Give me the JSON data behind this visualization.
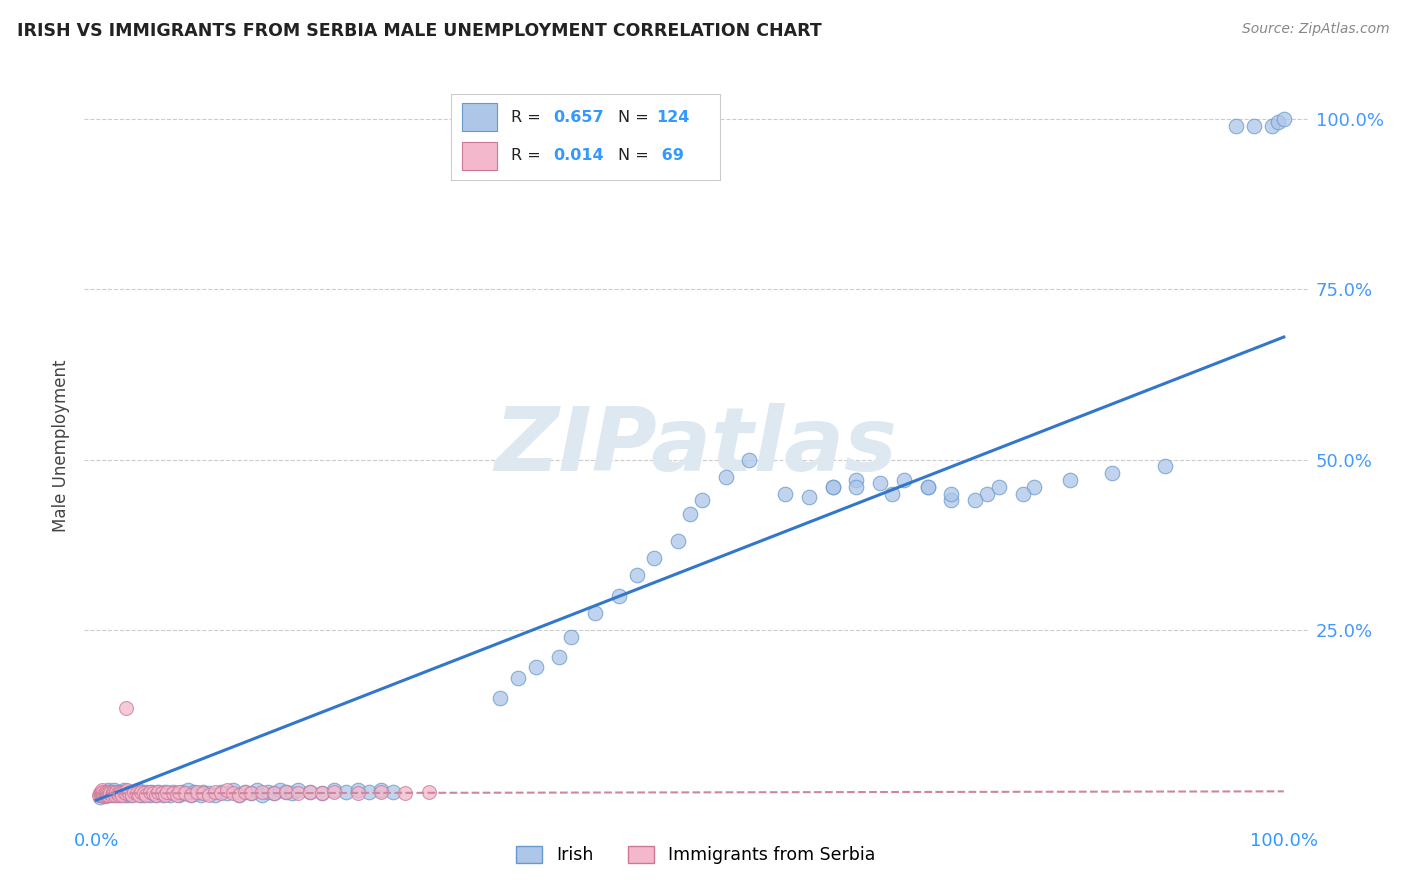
{
  "title": "IRISH VS IMMIGRANTS FROM SERBIA MALE UNEMPLOYMENT CORRELATION CHART",
  "source": "Source: ZipAtlas.com",
  "ylabel": "Male Unemployment",
  "legend_irish_R": "0.657",
  "legend_irish_N": "124",
  "legend_serbia_R": "0.014",
  "legend_serbia_N": "69",
  "irish_face_color": "#aec6e8",
  "irish_edge_color": "#6699cc",
  "serbia_face_color": "#f4b8cc",
  "serbia_edge_color": "#cc7799",
  "irish_line_color": "#3377cc",
  "serbia_line_color": "#cc8899",
  "grid_color": "#cccccc",
  "watermark_color": "#dde8f0",
  "right_tick_color": "#4499ff",
  "irish_x": [
    0.003,
    0.004,
    0.005,
    0.006,
    0.007,
    0.008,
    0.008,
    0.009,
    0.01,
    0.01,
    0.011,
    0.012,
    0.013,
    0.014,
    0.015,
    0.015,
    0.016,
    0.017,
    0.018,
    0.019,
    0.02,
    0.021,
    0.022,
    0.023,
    0.024,
    0.025,
    0.026,
    0.027,
    0.028,
    0.029,
    0.03,
    0.032,
    0.034,
    0.035,
    0.037,
    0.038,
    0.04,
    0.041,
    0.043,
    0.045,
    0.046,
    0.048,
    0.05,
    0.052,
    0.054,
    0.056,
    0.058,
    0.06,
    0.062,
    0.065,
    0.067,
    0.07,
    0.072,
    0.075,
    0.077,
    0.08,
    0.082,
    0.085,
    0.088,
    0.09,
    0.095,
    0.1,
    0.105,
    0.11,
    0.115,
    0.12,
    0.125,
    0.13,
    0.135,
    0.14,
    0.145,
    0.15,
    0.155,
    0.16,
    0.165,
    0.17,
    0.18,
    0.19,
    0.2,
    0.21,
    0.22,
    0.23,
    0.24,
    0.25,
    0.34,
    0.355,
    0.37,
    0.39,
    0.4,
    0.42,
    0.44,
    0.455,
    0.47,
    0.49,
    0.5,
    0.51,
    0.53,
    0.55,
    0.6,
    0.62,
    0.64,
    0.67,
    0.7,
    0.72,
    0.75,
    0.79,
    0.82,
    0.855,
    0.9,
    0.96,
    0.975,
    0.99,
    0.995,
    1.0,
    0.58,
    0.62,
    0.64,
    0.66,
    0.68,
    0.7,
    0.72,
    0.74,
    0.76,
    0.78
  ],
  "irish_y": [
    0.005,
    0.008,
    0.01,
    0.008,
    0.006,
    0.01,
    0.012,
    0.008,
    0.01,
    0.015,
    0.008,
    0.012,
    0.01,
    0.008,
    0.012,
    0.015,
    0.01,
    0.008,
    0.012,
    0.01,
    0.008,
    0.012,
    0.01,
    0.015,
    0.008,
    0.01,
    0.012,
    0.008,
    0.01,
    0.012,
    0.008,
    0.01,
    0.012,
    0.015,
    0.008,
    0.01,
    0.008,
    0.012,
    0.01,
    0.008,
    0.012,
    0.01,
    0.008,
    0.012,
    0.01,
    0.008,
    0.012,
    0.01,
    0.008,
    0.012,
    0.01,
    0.008,
    0.012,
    0.01,
    0.015,
    0.008,
    0.012,
    0.01,
    0.008,
    0.012,
    0.01,
    0.008,
    0.012,
    0.01,
    0.015,
    0.008,
    0.012,
    0.01,
    0.015,
    0.008,
    0.012,
    0.01,
    0.015,
    0.012,
    0.01,
    0.015,
    0.012,
    0.01,
    0.015,
    0.012,
    0.015,
    0.012,
    0.015,
    0.012,
    0.15,
    0.18,
    0.195,
    0.21,
    0.24,
    0.275,
    0.3,
    0.33,
    0.355,
    0.38,
    0.42,
    0.44,
    0.475,
    0.5,
    0.445,
    0.46,
    0.47,
    0.45,
    0.46,
    0.44,
    0.45,
    0.46,
    0.47,
    0.48,
    0.49,
    0.99,
    0.99,
    0.99,
    0.995,
    1.0,
    0.45,
    0.46,
    0.46,
    0.465,
    0.47,
    0.46,
    0.45,
    0.44,
    0.46,
    0.45
  ],
  "serbia_x": [
    0.002,
    0.003,
    0.004,
    0.004,
    0.005,
    0.005,
    0.006,
    0.006,
    0.007,
    0.008,
    0.008,
    0.009,
    0.01,
    0.011,
    0.012,
    0.013,
    0.014,
    0.015,
    0.016,
    0.017,
    0.018,
    0.019,
    0.02,
    0.021,
    0.022,
    0.023,
    0.025,
    0.026,
    0.028,
    0.03,
    0.032,
    0.034,
    0.036,
    0.038,
    0.04,
    0.042,
    0.045,
    0.048,
    0.05,
    0.052,
    0.055,
    0.058,
    0.06,
    0.065,
    0.068,
    0.07,
    0.075,
    0.08,
    0.085,
    0.09,
    0.095,
    0.1,
    0.105,
    0.11,
    0.115,
    0.12,
    0.125,
    0.13,
    0.14,
    0.15,
    0.16,
    0.17,
    0.18,
    0.19,
    0.2,
    0.22,
    0.24,
    0.26,
    0.28
  ],
  "serbia_y": [
    0.008,
    0.01,
    0.008,
    0.012,
    0.01,
    0.015,
    0.008,
    0.012,
    0.01,
    0.008,
    0.012,
    0.01,
    0.008,
    0.012,
    0.01,
    0.008,
    0.012,
    0.01,
    0.008,
    0.012,
    0.01,
    0.008,
    0.012,
    0.01,
    0.008,
    0.012,
    0.01,
    0.015,
    0.01,
    0.008,
    0.012,
    0.01,
    0.008,
    0.012,
    0.01,
    0.008,
    0.012,
    0.01,
    0.008,
    0.012,
    0.01,
    0.008,
    0.012,
    0.01,
    0.008,
    0.012,
    0.01,
    0.008,
    0.012,
    0.01,
    0.008,
    0.012,
    0.01,
    0.015,
    0.01,
    0.008,
    0.012,
    0.01,
    0.012,
    0.01,
    0.012,
    0.01,
    0.012,
    0.01,
    0.012,
    0.01,
    0.012,
    0.01,
    0.012
  ],
  "serbia_outlier_x": [
    0.025
  ],
  "serbia_outlier_y": [
    0.135
  ],
  "irish_trend_x": [
    0.0,
    1.0
  ],
  "irish_trend_y": [
    0.0,
    0.68
  ],
  "serbia_trend_x": [
    0.0,
    1.0
  ],
  "serbia_trend_y": [
    0.01,
    0.013
  ],
  "xlim": [
    -0.01,
    1.02
  ],
  "ylim": [
    -0.03,
    1.07
  ]
}
